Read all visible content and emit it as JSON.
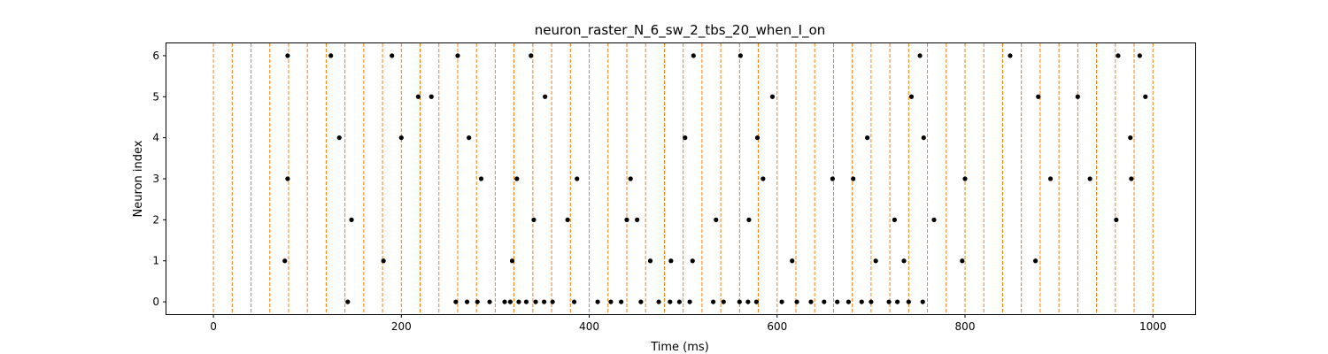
{
  "chart_data": {
    "type": "scatter",
    "title": "neuron_raster_N_6_sw_2_tbs_20_when_I_on",
    "xlabel": "Time (ms)",
    "ylabel": "Neuron index",
    "xlim": [
      -50,
      1045
    ],
    "ylim": [
      -0.3,
      6.3
    ],
    "xticks": [
      0,
      200,
      400,
      600,
      800,
      1000
    ],
    "yticks": [
      0,
      1,
      2,
      3,
      4,
      5,
      6
    ],
    "grid": false,
    "vlines": {
      "style": "dashed",
      "color": "#ff7f0e",
      "x": [
        0,
        20,
        40,
        60,
        80,
        100,
        120,
        140,
        160,
        180,
        200,
        220,
        240,
        260,
        280,
        300,
        320,
        340,
        360,
        380,
        400,
        420,
        440,
        460,
        480,
        500,
        520,
        540,
        560,
        580,
        600,
        620,
        640,
        660,
        680,
        700,
        720,
        740,
        760,
        780,
        800,
        820,
        840,
        860,
        880,
        900,
        920,
        940,
        960,
        980,
        1000
      ]
    },
    "series": [
      {
        "marker_color": "#000000",
        "points": [
          [
            76,
            1
          ],
          [
            79,
            6
          ],
          [
            79,
            3
          ],
          [
            125,
            6
          ],
          [
            134,
            4
          ],
          [
            143,
            0
          ],
          [
            147,
            2
          ],
          [
            181,
            1
          ],
          [
            190,
            6
          ],
          [
            200,
            4
          ],
          [
            218,
            5
          ],
          [
            232,
            5
          ],
          [
            258,
            0
          ],
          [
            260,
            6
          ],
          [
            270,
            0
          ],
          [
            272,
            4
          ],
          [
            281,
            0
          ],
          [
            285,
            3
          ],
          [
            294,
            0
          ],
          [
            310,
            0
          ],
          [
            316,
            0
          ],
          [
            318,
            1
          ],
          [
            323,
            3
          ],
          [
            325,
            0
          ],
          [
            333,
            0
          ],
          [
            338,
            6
          ],
          [
            341,
            2
          ],
          [
            343,
            0
          ],
          [
            352,
            0
          ],
          [
            353,
            5
          ],
          [
            361,
            0
          ],
          [
            377,
            2
          ],
          [
            384,
            0
          ],
          [
            387,
            3
          ],
          [
            409,
            0
          ],
          [
            423,
            0
          ],
          [
            434,
            0
          ],
          [
            440,
            2
          ],
          [
            444,
            3
          ],
          [
            451,
            2
          ],
          [
            455,
            0
          ],
          [
            465,
            1
          ],
          [
            474,
            0
          ],
          [
            486,
            0
          ],
          [
            487,
            1
          ],
          [
            496,
            0
          ],
          [
            502,
            4
          ],
          [
            507,
            0
          ],
          [
            510,
            1
          ],
          [
            511,
            6
          ],
          [
            532,
            0
          ],
          [
            535,
            2
          ],
          [
            543,
            0
          ],
          [
            560,
            0
          ],
          [
            561,
            6
          ],
          [
            569,
            0
          ],
          [
            570,
            2
          ],
          [
            578,
            0
          ],
          [
            579,
            4
          ],
          [
            585,
            3
          ],
          [
            595,
            5
          ],
          [
            605,
            0
          ],
          [
            616,
            1
          ],
          [
            621,
            0
          ],
          [
            636,
            0
          ],
          [
            650,
            0
          ],
          [
            659,
            3
          ],
          [
            664,
            0
          ],
          [
            676,
            0
          ],
          [
            681,
            3
          ],
          [
            690,
            0
          ],
          [
            696,
            4
          ],
          [
            700,
            0
          ],
          [
            705,
            1
          ],
          [
            719,
            0
          ],
          [
            725,
            2
          ],
          [
            728,
            0
          ],
          [
            735,
            1
          ],
          [
            740,
            0
          ],
          [
            743,
            5
          ],
          [
            752,
            6
          ],
          [
            756,
            4
          ],
          [
            755,
            0
          ],
          [
            767,
            2
          ],
          [
            797,
            1
          ],
          [
            800,
            3
          ],
          [
            848,
            6
          ],
          [
            875,
            1
          ],
          [
            878,
            5
          ],
          [
            891,
            3
          ],
          [
            920,
            5
          ],
          [
            933,
            3
          ],
          [
            961,
            2
          ],
          [
            963,
            6
          ],
          [
            976,
            4
          ],
          [
            977,
            3
          ],
          [
            986,
            6
          ],
          [
            992,
            5
          ]
        ]
      }
    ]
  }
}
